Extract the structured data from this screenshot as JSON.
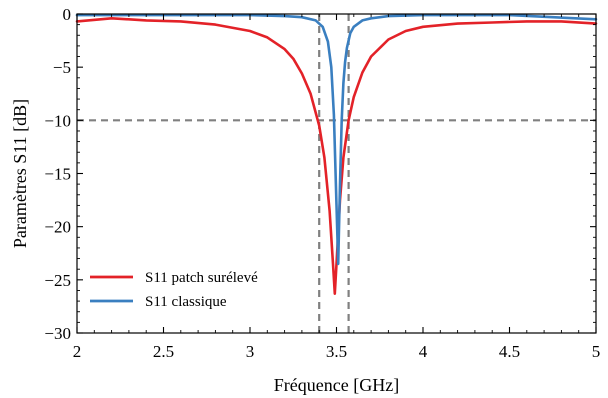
{
  "chart_data": {
    "type": "line",
    "title": "",
    "xlabel": "Fréquence [GHz]",
    "ylabel": "Paramètres S11 [dB]",
    "xlim": [
      2,
      5
    ],
    "ylim": [
      -30,
      0
    ],
    "x_ticks": [
      2,
      2.5,
      3,
      3.5,
      4,
      4.5,
      5
    ],
    "x_tick_labels": [
      "2",
      "2.5",
      "3",
      "3.5",
      "4",
      "4.5",
      "5"
    ],
    "y_ticks": [
      0,
      -5,
      -10,
      -15,
      -20,
      -25,
      -30
    ],
    "y_tick_labels": [
      "0",
      "−5",
      "−10",
      "−15",
      "−20",
      "−25",
      "−30"
    ],
    "grid": false,
    "legend_position": "lower-left",
    "series": [
      {
        "name": "S11 patch surélevé",
        "color": "#e32228",
        "x": [
          2.0,
          2.2,
          2.4,
          2.6,
          2.8,
          3.0,
          3.1,
          3.2,
          3.25,
          3.3,
          3.35,
          3.4,
          3.43,
          3.46,
          3.48,
          3.49,
          3.5,
          3.52,
          3.54,
          3.57,
          3.6,
          3.65,
          3.7,
          3.8,
          3.9,
          4.0,
          4.2,
          4.4,
          4.6,
          4.8,
          5.0
        ],
        "y": [
          -0.7,
          -0.4,
          -0.6,
          -0.7,
          -1.0,
          -1.6,
          -2.2,
          -3.3,
          -4.2,
          -5.6,
          -7.5,
          -10.5,
          -13.5,
          -18.5,
          -23.5,
          -26.3,
          -23.5,
          -17.5,
          -13.5,
          -10.0,
          -7.8,
          -5.5,
          -4.0,
          -2.4,
          -1.6,
          -1.2,
          -0.9,
          -0.8,
          -0.7,
          -0.7,
          -0.9
        ]
      },
      {
        "name": "S11 classique",
        "color": "#3a7fc0",
        "x": [
          2.0,
          2.5,
          3.0,
          3.2,
          3.3,
          3.38,
          3.42,
          3.45,
          3.47,
          3.485,
          3.5,
          3.51,
          3.52,
          3.53,
          3.54,
          3.55,
          3.56,
          3.58,
          3.6,
          3.65,
          3.7,
          3.8,
          4.0,
          4.5,
          5.0
        ],
        "y": [
          -0.1,
          -0.1,
          -0.1,
          -0.2,
          -0.3,
          -0.6,
          -1.2,
          -2.6,
          -5.0,
          -9.5,
          -18.0,
          -23.5,
          -16.0,
          -10.0,
          -6.5,
          -4.5,
          -3.2,
          -1.8,
          -1.2,
          -0.6,
          -0.4,
          -0.2,
          -0.1,
          -0.1,
          -0.5
        ]
      }
    ],
    "reference_lines": [
      {
        "orientation": "horizontal",
        "value": -10,
        "color": "#808080",
        "style": "dashed"
      },
      {
        "orientation": "vertical",
        "value": 3.4,
        "color": "#808080",
        "style": "dashed"
      },
      {
        "orientation": "vertical",
        "value": 3.57,
        "color": "#808080",
        "style": "dashed"
      }
    ]
  }
}
